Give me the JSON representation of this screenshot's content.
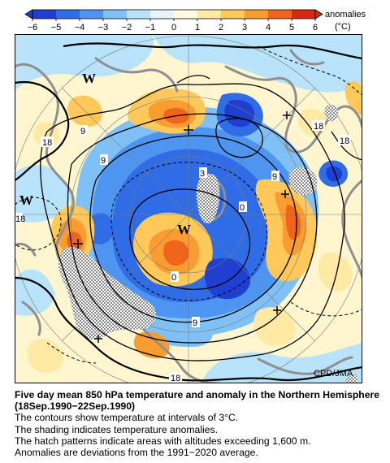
{
  "colorbar": {
    "unit_label_1": "anomalies",
    "unit_label_2": "(°C)",
    "ticks": [
      "−6",
      "−5",
      "−4",
      "−3",
      "−2",
      "−1",
      "0",
      "1",
      "2",
      "3",
      "4",
      "5",
      "6"
    ],
    "colors": [
      "#1f3fd0",
      "#2f6ce6",
      "#4d95f0",
      "#7fc0f7",
      "#b8e3fb",
      "#e4f5fe",
      "#fffbe0",
      "#ffe9a3",
      "#ffc85a",
      "#fb9c30",
      "#f1641c",
      "#d82a12"
    ]
  },
  "map": {
    "contour_labels": [
      "18",
      "18",
      "18",
      "9",
      "9",
      "9",
      "3",
      "0",
      "0",
      "18",
      "9",
      "18"
    ],
    "pressure_letters": [
      "W",
      "W",
      "W"
    ],
    "credit": "CPD/JMA"
  },
  "caption": {
    "title": "Five day mean 850 hPa temperature and anomaly in the Northern Hemisphere (18Sep.1990−22Sep.1990)",
    "line1": "The contours show temperature at intervals of 3°C.",
    "line2": "The shading indicates temperature anomalies.",
    "line3": "The hatch patterns indicate areas with altitudes exceeding 1,600 m.",
    "line4": "Anomalies are deviations from the 1991−2020 average."
  }
}
